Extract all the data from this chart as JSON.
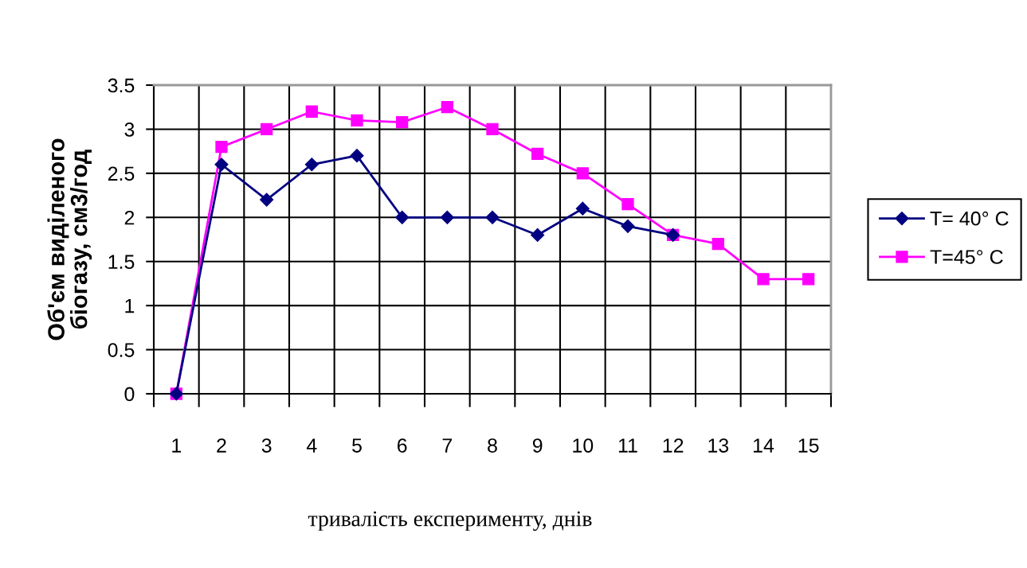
{
  "chart_data": {
    "type": "line",
    "xlabel": "тривалість експерименту, днів",
    "ylabel": "Об'єм виділеного\nбіогазу, см3/год",
    "categories": [
      "1",
      "2",
      "3",
      "4",
      "5",
      "6",
      "7",
      "8",
      "9",
      "10",
      "11",
      "12",
      "13",
      "14",
      "15"
    ],
    "series": [
      {
        "name": "T= 40° C",
        "color": "#000080",
        "marker": "diamond",
        "values": [
          0,
          2.6,
          2.2,
          2.6,
          2.7,
          2.0,
          2.0,
          2.0,
          1.8,
          2.1,
          1.9,
          1.8,
          null,
          null,
          null
        ]
      },
      {
        "name": "T=45° C",
        "color": "#ff00ff",
        "marker": "square",
        "values": [
          0,
          2.8,
          3.0,
          3.2,
          3.1,
          3.08,
          3.25,
          3.0,
          2.72,
          2.5,
          2.15,
          1.8,
          1.7,
          1.3,
          1.3
        ]
      }
    ],
    "ylim": [
      0,
      3.5
    ],
    "yticks": [
      0,
      0.5,
      1,
      1.5,
      2,
      2.5,
      3,
      3.5
    ],
    "grid": true,
    "legend": "right",
    "line_style": "solid"
  }
}
